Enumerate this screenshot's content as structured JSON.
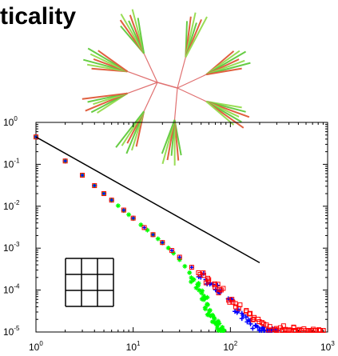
{
  "title_fragment": "ticality",
  "chart_data": {
    "type": "scatter",
    "x_scale": "log",
    "y_scale": "log",
    "xlim": [
      1,
      1000
    ],
    "ylim": [
      1e-05,
      1
    ],
    "xticks": [
      {
        "base": "10",
        "exp": "0"
      },
      {
        "base": "10",
        "exp": "1"
      },
      {
        "base": "10",
        "exp": "2"
      },
      {
        "base": "10",
        "exp": "3"
      }
    ],
    "yticks": [
      {
        "base": "10",
        "exp": "0"
      },
      {
        "base": "10",
        "exp": "-1"
      },
      {
        "base": "10",
        "exp": "-2"
      },
      {
        "base": "10",
        "exp": "-3"
      },
      {
        "base": "10",
        "exp": "-4"
      },
      {
        "base": "10",
        "exp": "-5"
      }
    ],
    "fit_line": {
      "color": "#000000",
      "x": [
        1,
        200
      ],
      "y": [
        0.45,
        0.00045
      ]
    },
    "series": [
      {
        "color": "#00ff00",
        "marker": "star",
        "x": [
          1,
          2,
          3,
          4,
          5,
          6,
          7,
          8,
          9,
          10,
          12,
          14,
          16,
          18,
          20,
          23,
          26,
          30,
          34,
          38,
          42,
          46,
          50,
          54,
          58,
          62,
          66,
          70,
          74,
          78,
          82,
          85
        ],
        "y": [
          0.45,
          0.12,
          0.055,
          0.031,
          0.02,
          0.014,
          0.0103,
          0.0079,
          0.0063,
          0.0051,
          0.0036,
          0.0027,
          0.0021,
          0.00167,
          0.00135,
          0.00101,
          0.00076,
          0.00053,
          0.00037,
          0.00026,
          0.00018,
          0.000125,
          8.5e-05,
          6e-05,
          4.2e-05,
          3e-05,
          2.2e-05,
          1.7e-05,
          1.4e-05,
          1.2e-05,
          1.1e-05,
          1e-05
        ]
      },
      {
        "color": "#0000ff",
        "marker": "plus",
        "x": [
          1,
          2,
          3,
          4,
          5,
          6,
          8,
          10,
          13,
          16,
          20,
          25,
          30,
          40,
          50,
          60,
          70,
          80,
          100,
          120,
          140,
          160,
          180,
          200,
          220,
          240,
          260,
          280,
          300
        ],
        "y": [
          0.45,
          0.12,
          0.055,
          0.031,
          0.02,
          0.014,
          0.0081,
          0.0052,
          0.0031,
          0.0021,
          0.00136,
          0.00088,
          0.00061,
          0.00035,
          0.00023,
          0.000158,
          0.000114,
          8.6e-05,
          5.2e-05,
          3.4e-05,
          2.4e-05,
          1.8e-05,
          1.4e-05,
          1.2e-05,
          1.1e-05,
          1.05e-05,
          1e-05,
          1e-05,
          1e-05
        ]
      },
      {
        "color": "#ff0000",
        "marker": "square",
        "x": [
          1,
          2,
          3,
          4,
          5,
          6,
          8,
          10,
          13,
          16,
          20,
          25,
          30,
          40,
          50,
          60,
          70,
          80,
          100,
          120,
          150,
          180,
          210,
          250,
          300,
          350,
          400,
          450,
          500,
          600,
          700,
          800,
          900
        ],
        "y": [
          0.45,
          0.12,
          0.055,
          0.031,
          0.02,
          0.014,
          0.0081,
          0.0052,
          0.0031,
          0.0021,
          0.00136,
          0.00088,
          0.00061,
          0.00035,
          0.00023,
          0.000162,
          0.00012,
          9.3e-05,
          6e-05,
          4.3e-05,
          2.9e-05,
          2.1e-05,
          1.7e-05,
          1.3e-05,
          1.05e-05,
          1.2e-05,
          1e-05,
          1.1e-05,
          1e-05,
          1e-05,
          1e-05,
          1e-05,
          1e-05
        ]
      }
    ]
  },
  "inset_grid": {
    "rows": 3,
    "cols": 3
  },
  "tree_inset": {
    "branch_color": "#e07070",
    "leaf_colors": [
      "#66cc44",
      "#e06040",
      "#99dd55"
    ]
  }
}
